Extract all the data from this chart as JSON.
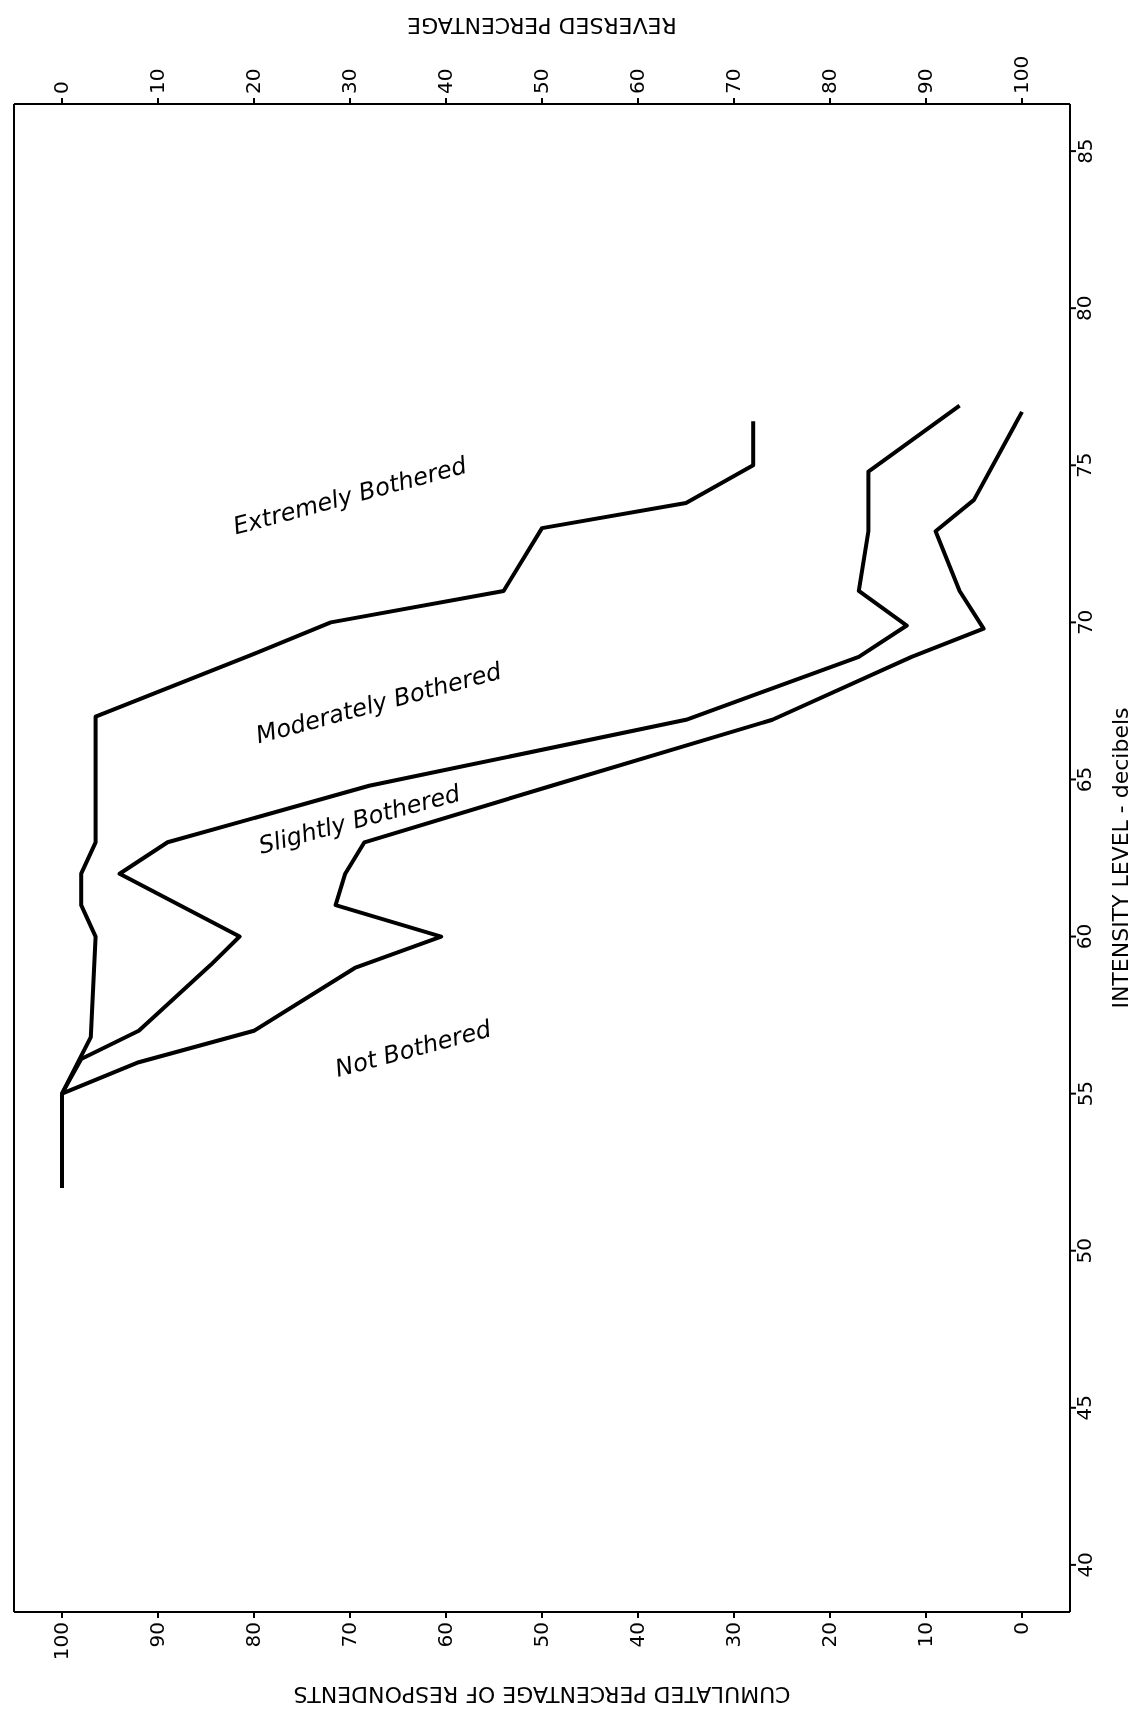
{
  "chart_data": {
    "type": "line",
    "xlabel": "CUMULATED PERCENTAGE OF RESPONDENTS",
    "x2label": "REVERSED PERCENTAGE",
    "ylabel": "INTENSITY LEVEL - decibels",
    "annotations": [
      "Extremely Bothered",
      "Moderately Bothered",
      "Slightly Bothered",
      "Not Bothered"
    ],
    "series": [
      {
        "color": "#000000",
        "x": [
          100,
          100,
          97,
          96.5,
          98,
          98,
          96.5,
          96.5,
          80,
          72,
          54,
          50,
          35,
          28,
          28
        ],
        "values": [
          52,
          55,
          56.8,
          60,
          61,
          62,
          63,
          67,
          69,
          70,
          71,
          73,
          73.8,
          75,
          76.4
        ]
      },
      {
        "color": "#000000",
        "x": [
          100,
          98,
          92,
          84.5,
          81.5,
          94,
          89,
          68,
          35,
          17,
          12,
          17,
          16,
          16,
          6.5
        ],
        "values": [
          55,
          56.1,
          57,
          59.1,
          60,
          62,
          63,
          64.8,
          66.9,
          68.9,
          69.9,
          71,
          72.9,
          74.8,
          76.9
        ]
      },
      {
        "color": "#000000",
        "x": [
          100,
          92,
          80,
          69.5,
          60.5,
          71.5,
          70.5,
          68.5,
          49,
          26,
          11.5,
          4,
          6.5,
          9,
          5,
          0
        ],
        "values": [
          55,
          56,
          57,
          59,
          60,
          61,
          62,
          63,
          64.8,
          66.9,
          68.9,
          69.8,
          71,
          72.9,
          73.9,
          76.7
        ]
      }
    ],
    "xlim": [
      105,
      -5
    ],
    "xticks": [
      0,
      10,
      20,
      30,
      40,
      50,
      60,
      70,
      80,
      90,
      100
    ],
    "x2lim": [
      -5,
      105
    ],
    "x2ticks": [
      0,
      10,
      20,
      30,
      40,
      50,
      60,
      70,
      80,
      90,
      100
    ],
    "ylim": [
      38.5,
      86.5
    ],
    "yticks": [
      40,
      45,
      50,
      55,
      60,
      65,
      70,
      75,
      80,
      85
    ]
  }
}
